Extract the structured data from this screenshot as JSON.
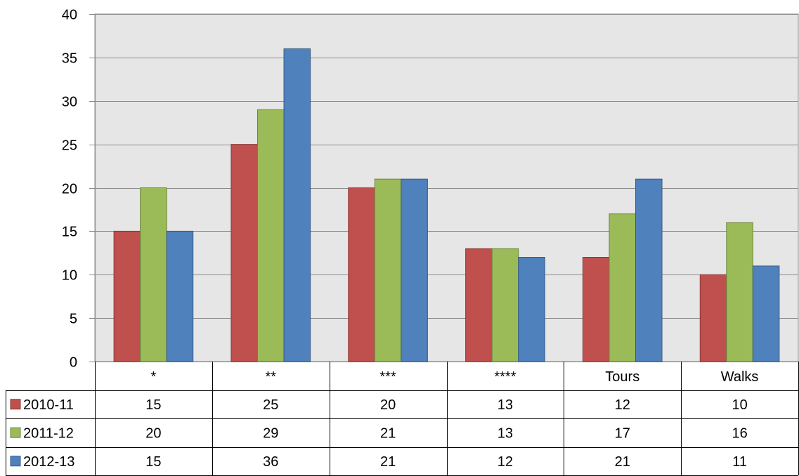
{
  "chart_data": {
    "type": "bar",
    "categories": [
      "*",
      "**",
      "***",
      "****",
      "Tours",
      "Walks"
    ],
    "series": [
      {
        "name": "2010-11",
        "color": "#c0504d",
        "values": [
          15,
          25,
          20,
          13,
          12,
          10
        ]
      },
      {
        "name": "2011-12",
        "color": "#9bbb59",
        "values": [
          20,
          29,
          21,
          13,
          17,
          16
        ]
      },
      {
        "name": "2012-13",
        "color": "#4f81bd",
        "values": [
          15,
          36,
          21,
          12,
          21,
          11
        ]
      }
    ],
    "yticks": [
      "0",
      "5",
      "10",
      "15",
      "20",
      "25",
      "30",
      "35",
      "40"
    ],
    "ylim": [
      0,
      40
    ],
    "grid": true,
    "legend": "data-table",
    "plot_background": "#e6e6e6"
  }
}
